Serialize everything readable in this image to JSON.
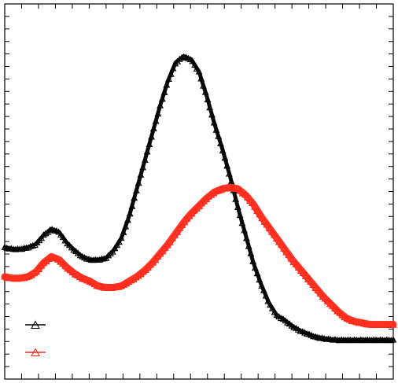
{
  "chart_data": {
    "type": "scatter",
    "title": "",
    "xlabel": "",
    "ylabel": "",
    "xlim": [
      0,
      100
    ],
    "ylim": [
      0,
      100
    ],
    "grid": false,
    "legend": {
      "placement": "bottom-left",
      "entries": [
        {
          "name": "",
          "color": "#000000",
          "marker": "triangle-icon"
        },
        {
          "name": "",
          "color": "#ff2a1a",
          "marker": "triangle-icon"
        }
      ]
    },
    "series": [
      {
        "color": "#000000",
        "marker": "triangle-icon",
        "x": [
          0,
          2,
          4,
          6,
          8,
          10,
          12,
          14,
          16,
          18,
          20,
          22,
          24,
          26,
          28,
          30,
          32,
          34,
          36,
          38,
          40,
          42,
          44,
          46,
          48,
          50,
          52,
          54,
          56,
          58,
          60,
          62,
          64,
          66,
          68,
          70,
          72,
          74,
          76,
          78,
          80,
          82,
          84,
          86,
          88,
          90,
          92,
          94,
          96,
          98,
          100
        ],
        "y": [
          32,
          31.5,
          31.5,
          32,
          33,
          36,
          38,
          37,
          33.5,
          31,
          29,
          28,
          28,
          28.5,
          31,
          35,
          42,
          51,
          60,
          69,
          78,
          86,
          92,
          94,
          93,
          89,
          81,
          72,
          64,
          55,
          45,
          36,
          27,
          20,
          14,
          10,
          8.5,
          6.5,
          5,
          4,
          3,
          2.5,
          2.2,
          2,
          2,
          2,
          2,
          2,
          2,
          2,
          2
        ]
      },
      {
        "color": "#ff2a1a",
        "marker": "triangle-icon",
        "x": [
          0,
          2,
          4,
          6,
          8,
          10,
          12,
          14,
          16,
          18,
          20,
          22,
          24,
          26,
          28,
          30,
          32,
          34,
          36,
          38,
          40,
          42,
          44,
          46,
          48,
          50,
          52,
          54,
          56,
          58,
          60,
          62,
          64,
          66,
          68,
          70,
          72,
          74,
          76,
          78,
          80,
          82,
          84,
          86,
          88,
          90,
          92,
          94,
          96,
          98,
          100
        ],
        "y": [
          22.5,
          22,
          22,
          22.5,
          24,
          27,
          29,
          28,
          25.5,
          23.5,
          22,
          21,
          19.5,
          19,
          19,
          19.5,
          21,
          22.5,
          24.5,
          27,
          30,
          33,
          36.5,
          40,
          43,
          45.5,
          48,
          50,
          51,
          51.5,
          51,
          49,
          46,
          42,
          38.5,
          35,
          31.5,
          28,
          25,
          22,
          19,
          16,
          13.5,
          11,
          9,
          8,
          7.5,
          7,
          7,
          7,
          7
        ]
      }
    ]
  }
}
